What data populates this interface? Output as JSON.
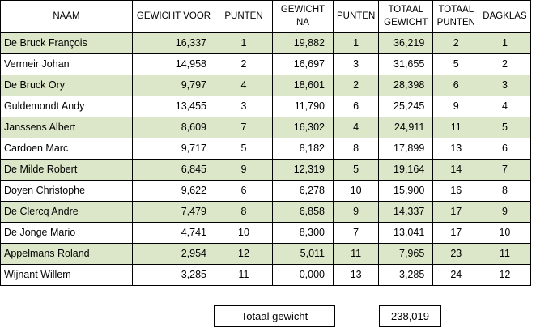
{
  "headers": {
    "naam": "NAAM",
    "gewicht_voor": "GEWICHT VOOR",
    "punten1": "PUNTEN",
    "gewicht_na": "GEWICHT NA",
    "punten2": "PUNTEN",
    "totaal_gewicht": "TOTAAL GEWICHT",
    "totaal_punten": "TOTAAL PUNTEN",
    "dagklas": "DAGKLAS"
  },
  "rows": [
    {
      "naam": "De Bruck François",
      "gewicht_voor": "16,337",
      "punten1": "1",
      "gewicht_na": "19,882",
      "punten2": "1",
      "totaal_gewicht": "36,219",
      "totaal_punten": "2",
      "dagklas": "1"
    },
    {
      "naam": "Vermeir Johan",
      "gewicht_voor": "14,958",
      "punten1": "2",
      "gewicht_na": "16,697",
      "punten2": "3",
      "totaal_gewicht": "31,655",
      "totaal_punten": "5",
      "dagklas": "2"
    },
    {
      "naam": "De Bruck Ory",
      "gewicht_voor": "9,797",
      "punten1": "4",
      "gewicht_na": "18,601",
      "punten2": "2",
      "totaal_gewicht": "28,398",
      "totaal_punten": "6",
      "dagklas": "3"
    },
    {
      "naam": "Guldemondt Andy",
      "gewicht_voor": "13,455",
      "punten1": "3",
      "gewicht_na": "11,790",
      "punten2": "6",
      "totaal_gewicht": "25,245",
      "totaal_punten": "9",
      "dagklas": "4"
    },
    {
      "naam": "Janssens Albert",
      "gewicht_voor": "8,609",
      "punten1": "7",
      "gewicht_na": "16,302",
      "punten2": "4",
      "totaal_gewicht": "24,911",
      "totaal_punten": "11",
      "dagklas": "5"
    },
    {
      "naam": "Cardoen Marc",
      "gewicht_voor": "9,717",
      "punten1": "5",
      "gewicht_na": "8,182",
      "punten2": "8",
      "totaal_gewicht": "17,899",
      "totaal_punten": "13",
      "dagklas": "6"
    },
    {
      "naam": "De Milde Robert",
      "gewicht_voor": "6,845",
      "punten1": "9",
      "gewicht_na": "12,319",
      "punten2": "5",
      "totaal_gewicht": "19,164",
      "totaal_punten": "14",
      "dagklas": "7"
    },
    {
      "naam": "Doyen Christophe",
      "gewicht_voor": "9,622",
      "punten1": "6",
      "gewicht_na": "6,278",
      "punten2": "10",
      "totaal_gewicht": "15,900",
      "totaal_punten": "16",
      "dagklas": "8"
    },
    {
      "naam": "De Clercq Andre",
      "gewicht_voor": "7,479",
      "punten1": "8",
      "gewicht_na": "6,858",
      "punten2": "9",
      "totaal_gewicht": "14,337",
      "totaal_punten": "17",
      "dagklas": "9"
    },
    {
      "naam": "De Jonge Mario",
      "gewicht_voor": "4,741",
      "punten1": "10",
      "gewicht_na": "8,300",
      "punten2": "7",
      "totaal_gewicht": "13,041",
      "totaal_punten": "17",
      "dagklas": "10"
    },
    {
      "naam": "Appelmans Roland",
      "gewicht_voor": "2,954",
      "punten1": "12",
      "gewicht_na": "5,011",
      "punten2": "11",
      "totaal_gewicht": "7,965",
      "totaal_punten": "23",
      "dagklas": "11"
    },
    {
      "naam": "Wijnant Willem",
      "gewicht_voor": "3,285",
      "punten1": "11",
      "gewicht_na": "0,000",
      "punten2": "13",
      "totaal_gewicht": "3,285",
      "totaal_punten": "24",
      "dagklas": "12"
    }
  ],
  "totals": {
    "label": "Totaal gewicht",
    "value": "238,019"
  },
  "colors": {
    "row_highlight": "#dce6c8",
    "border": "#000000"
  }
}
